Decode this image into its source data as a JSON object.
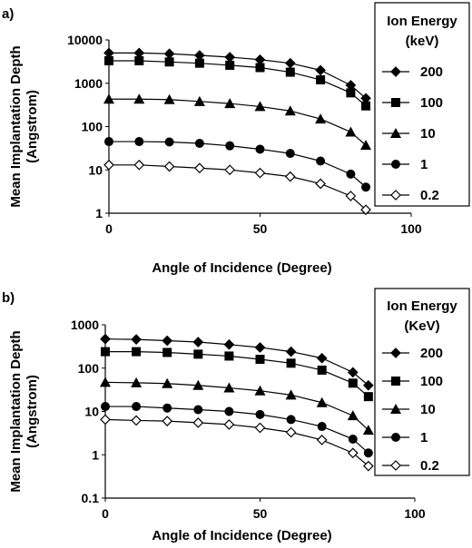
{
  "chart_data": [
    {
      "panel_label": "a)",
      "type": "line",
      "xlabel": "Angle of Incidence (Degree)",
      "ylabel_lines": [
        "Mean Implantation Depth",
        "(Angstrom)"
      ],
      "xlim": [
        0,
        100
      ],
      "ylim": [
        1,
        10000
      ],
      "y_scale": "log",
      "x_ticks": [
        "0",
        "50",
        "100"
      ],
      "y_ticks": [
        "1",
        "10",
        "100",
        "1000",
        "10000"
      ],
      "legend": {
        "title_lines": [
          "Ion Energy",
          "(keV)"
        ],
        "placement": "right"
      },
      "x": [
        0,
        10,
        20,
        30,
        40,
        50,
        60,
        70,
        80,
        85
      ],
      "series": [
        {
          "name": "200",
          "marker": "diamond-filled",
          "values": [
            5000,
            5000,
            4800,
            4400,
            4000,
            3500,
            2900,
            2000,
            900,
            450
          ]
        },
        {
          "name": "100",
          "marker": "square-filled",
          "values": [
            3300,
            3300,
            3100,
            2900,
            2600,
            2300,
            1800,
            1200,
            600,
            300
          ]
        },
        {
          "name": "10",
          "marker": "triangle-filled",
          "values": [
            430,
            430,
            420,
            380,
            340,
            290,
            230,
            150,
            75,
            37
          ]
        },
        {
          "name": "1",
          "marker": "circle-filled",
          "values": [
            45,
            45,
            44,
            41,
            36,
            30,
            24,
            16,
            8,
            4
          ]
        },
        {
          "name": "0.2",
          "marker": "diamond-open",
          "values": [
            13,
            13,
            12,
            11,
            10,
            8.5,
            7,
            4.8,
            2.5,
            1.2
          ]
        }
      ]
    },
    {
      "panel_label": "b)",
      "type": "line",
      "xlabel": "Angle of Incidence (Degree)",
      "ylabel_lines": [
        "Mean Implantation Depth",
        "(Angstrom)"
      ],
      "xlim": [
        0,
        100
      ],
      "ylim": [
        0.1,
        1000
      ],
      "y_scale": "log",
      "x_ticks": [
        "0",
        "50",
        "100"
      ],
      "y_ticks": [
        "0.1",
        "1",
        "10",
        "100",
        "1000"
      ],
      "legend": {
        "title_lines": [
          "Ion Energy",
          "(KeV)"
        ],
        "placement": "right"
      },
      "x": [
        0,
        10,
        20,
        30,
        40,
        50,
        60,
        70,
        80,
        85
      ],
      "series": [
        {
          "name": "200",
          "marker": "diamond-filled",
          "values": [
            470,
            460,
            430,
            400,
            350,
            300,
            240,
            170,
            80,
            40
          ]
        },
        {
          "name": "100",
          "marker": "square-filled",
          "values": [
            240,
            240,
            230,
            210,
            190,
            160,
            130,
            90,
            45,
            22
          ]
        },
        {
          "name": "10",
          "marker": "triangle-filled",
          "values": [
            47,
            46,
            44,
            40,
            35,
            30,
            24,
            16,
            8,
            3.7
          ]
        },
        {
          "name": "1",
          "marker": "circle-filled",
          "values": [
            13,
            13,
            12,
            11,
            10,
            8.5,
            6.5,
            4.5,
            2.3,
            1.1
          ]
        },
        {
          "name": "0.2",
          "marker": "diamond-open",
          "values": [
            6.5,
            6.2,
            6,
            5.5,
            5,
            4.2,
            3.3,
            2.2,
            1.1,
            0.55
          ]
        }
      ]
    }
  ]
}
